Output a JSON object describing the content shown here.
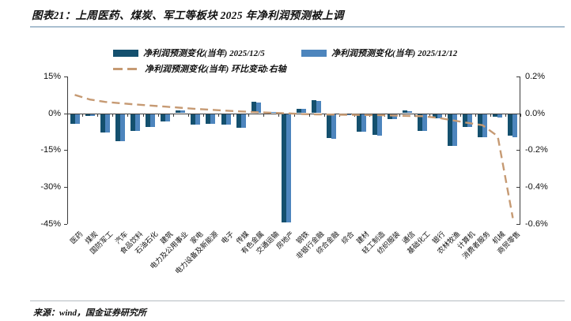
{
  "header": {
    "title": "图表21：上周医药、煤炭、军工等板块 2025 年净利润预测被上调"
  },
  "legend": {
    "items": [
      {
        "label": "净利润预测变化(当年) 2025/12/5",
        "swatch": "bar-swatch-dark-blue"
      },
      {
        "label": "净利润预测变化(当年) 2025/12/12",
        "swatch": "bar-swatch-light-blue"
      },
      {
        "label": "净利润预测变化(当年) 环比变动:右轴",
        "swatch": "dashed-line-swatch-tan"
      }
    ]
  },
  "footer": {
    "source": "来源：wind，国金证券研究所"
  },
  "colors": {
    "series_dark_blue": "#14506e",
    "series_light_blue": "#4d85bd",
    "line_tan": "#c69a73",
    "axis": "#3c3c3c",
    "title_rule": "#a9bfd0"
  },
  "chart_data": {
    "type": "bar",
    "subtype": "grouped bars with dashed line on secondary axis",
    "title": "上周医药、煤炭、军工等板块2025年净利润预测被上调",
    "categories": [
      "医药",
      "煤炭",
      "国防军工",
      "汽车",
      "食品饮料",
      "石油石化",
      "建筑",
      "电力及公用事业",
      "家电",
      "电力设备及新能源",
      "电子",
      "传媒",
      "有色金属",
      "交通运输",
      "房地产",
      "钢铁",
      "非银行金融",
      "综合金融",
      "综合",
      "建材",
      "轻工制造",
      "纺织服装",
      "通信",
      "基础化工",
      "银行",
      "农林牧渔",
      "计算机",
      "消费者服务",
      "机械",
      "商贸零售"
    ],
    "series": [
      {
        "name": "净利润预测变化(当年) 2025/12/5",
        "type": "bar",
        "axis": "left",
        "color": "#14506e",
        "values": [
          -4.1,
          -0.9,
          -7.7,
          -11.1,
          -6.9,
          -5.2,
          -3.2,
          1.0,
          -4.5,
          -4.0,
          -4.2,
          -5.5,
          4.6,
          0.5,
          -44.3,
          1.7,
          5.2,
          -9.9,
          -0.6,
          -7.2,
          -8.5,
          -2.0,
          1.0,
          -6.8,
          -1.7,
          -12.9,
          -5.3,
          -9.5,
          -1.2,
          -8.8
        ]
      },
      {
        "name": "净利润预测变化(当年) 2025/12/12",
        "type": "bar",
        "axis": "left",
        "color": "#4d85bd",
        "values": [
          -4.0,
          -0.8,
          -7.6,
          -11.0,
          -6.8,
          -5.2,
          -3.1,
          1.0,
          -4.5,
          -4.0,
          -4.2,
          -5.5,
          4.3,
          0.5,
          -44.3,
          1.7,
          5.0,
          -10.0,
          -0.6,
          -7.3,
          -8.7,
          -2.1,
          0.9,
          -6.8,
          -1.7,
          -13.0,
          -5.4,
          -9.6,
          -1.3,
          -9.4
        ]
      },
      {
        "name": "净利润预测变化(当年) 环比变动:右轴",
        "type": "line-dashed",
        "axis": "right",
        "color": "#c69a73",
        "values": [
          0.1,
          0.075,
          0.062,
          0.055,
          0.048,
          0.042,
          0.036,
          0.03,
          0.024,
          0.019,
          0.014,
          0.01,
          0.006,
          0.003,
          0.0,
          -0.004,
          -0.006,
          -0.007,
          -0.008,
          -0.009,
          -0.01,
          -0.012,
          -0.014,
          -0.016,
          -0.024,
          -0.038,
          -0.052,
          -0.065,
          -0.125,
          -0.57
        ]
      }
    ],
    "left_axis": {
      "ticks": [
        "15%",
        "0%",
        "-15%",
        "-30%",
        "-45%"
      ],
      "tick_values": [
        15,
        0,
        -15,
        -30,
        -45
      ],
      "min": -45,
      "max": 15
    },
    "right_axis": {
      "ticks": [
        "0.2%",
        "0.0%",
        "-0.2%",
        "-0.4%",
        "-0.6%"
      ],
      "tick_values": [
        0.2,
        0.0,
        -0.2,
        -0.4,
        -0.6
      ],
      "min": -0.6,
      "max": 0.2
    },
    "grid": false,
    "legend_position": "top"
  }
}
